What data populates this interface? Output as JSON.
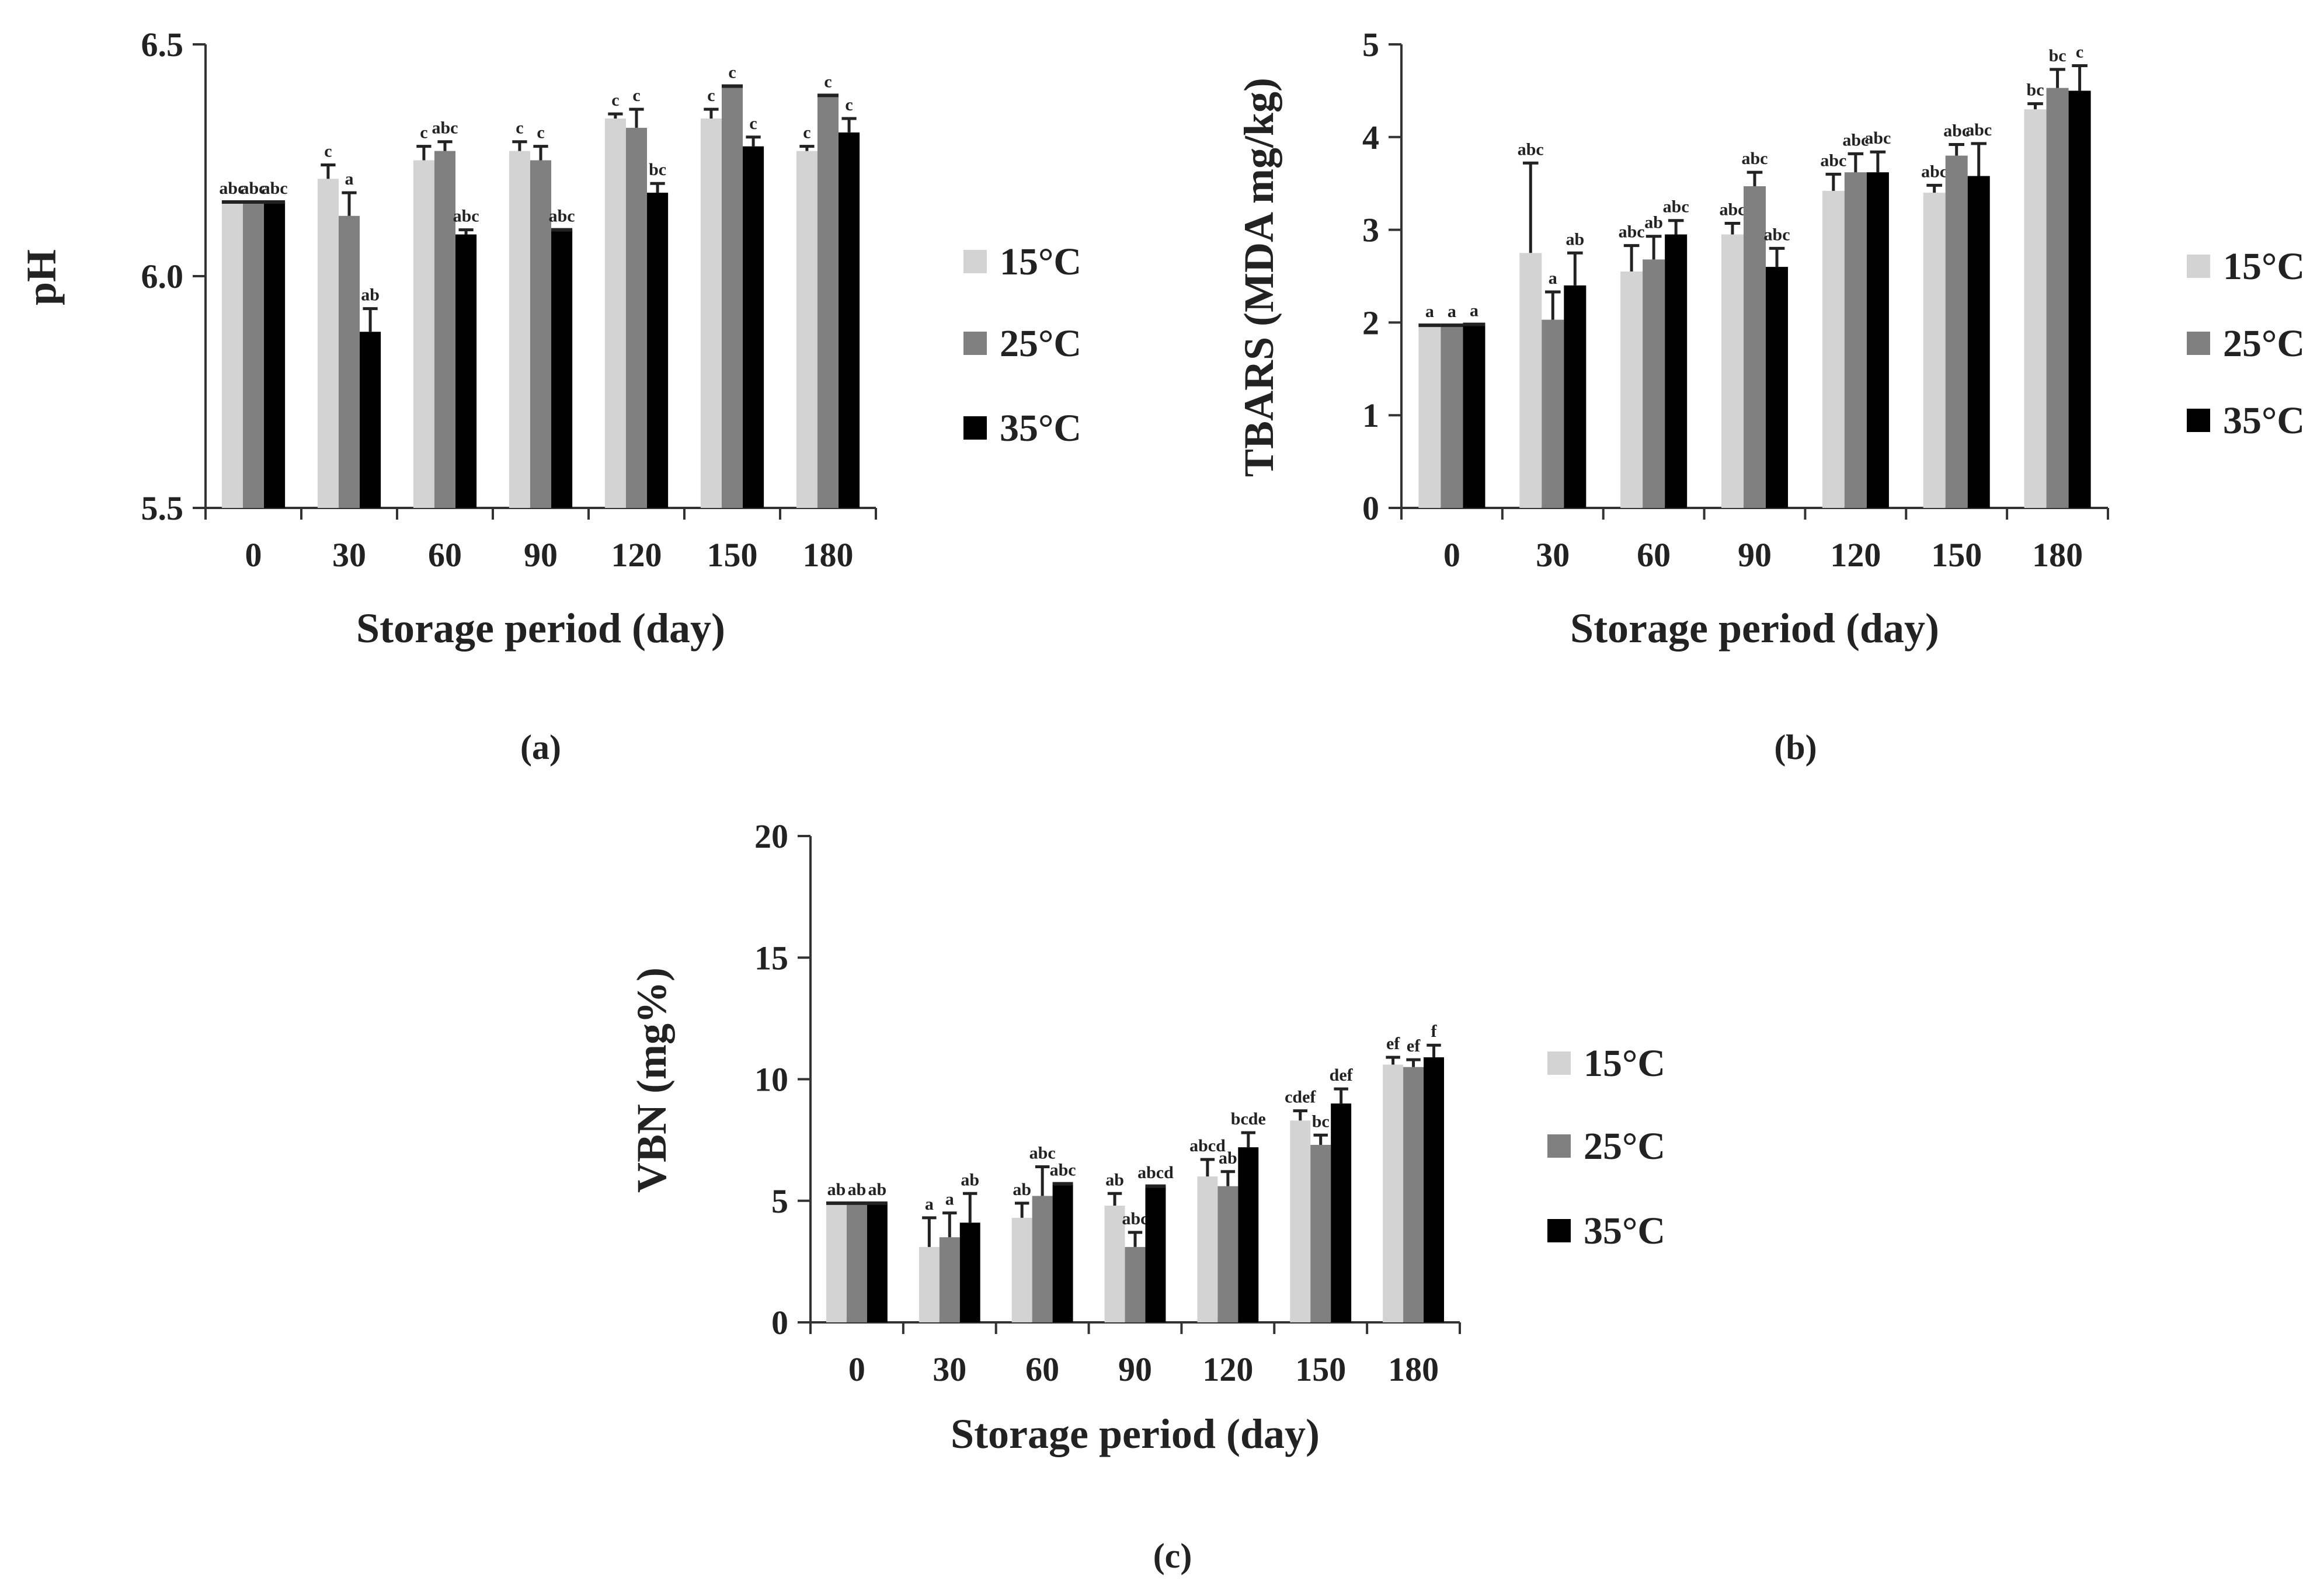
{
  "chart_data": [
    {
      "type": "bar",
      "panel": "(a)",
      "ylabel": "pH",
      "xlabel": "Storage period (day)",
      "ylim": [
        5.5,
        6.5
      ],
      "yticks": [
        "5.5",
        "6.0",
        "6.5"
      ],
      "ytick_values": [
        5.5,
        6.0,
        6.5
      ],
      "categories": [
        "0",
        "30",
        "60",
        "90",
        "120",
        "150",
        "180"
      ],
      "series": [
        {
          "name": "15°C",
          "color": "#d3d3d3",
          "values": [
            6.16,
            6.21,
            6.25,
            6.27,
            6.34,
            6.34,
            6.27
          ],
          "errors": [
            0.0,
            0.03,
            0.03,
            0.02,
            0.01,
            0.02,
            0.01
          ],
          "letters": [
            "abc",
            "c",
            "c",
            "c",
            "c",
            "c",
            "c"
          ]
        },
        {
          "name": "25°C",
          "color": "#808080",
          "values": [
            6.16,
            6.13,
            6.27,
            6.25,
            6.32,
            6.41,
            6.39
          ],
          "errors": [
            0.0,
            0.05,
            0.02,
            0.03,
            0.04,
            0.0,
            0.0
          ],
          "letters": [
            "abc",
            "a",
            "abc",
            "c",
            "c",
            "c",
            "c"
          ]
        },
        {
          "name": "35°C",
          "color": "#000000",
          "values": [
            6.16,
            5.88,
            6.09,
            6.1,
            6.18,
            6.28,
            6.31
          ],
          "errors": [
            0.0,
            0.05,
            0.01,
            0.0,
            0.02,
            0.02,
            0.03
          ],
          "letters": [
            "abc",
            "ab",
            "abc",
            "abc",
            "bc",
            "c",
            "c"
          ]
        }
      ]
    },
    {
      "type": "bar",
      "panel": "(b)",
      "ylabel": "TBARS (MDA mg/kg)",
      "xlabel": "Storage period (day)",
      "ylim": [
        0,
        5
      ],
      "yticks": [
        "0",
        "1",
        "2",
        "3",
        "4",
        "5"
      ],
      "ytick_values": [
        0,
        1,
        2,
        3,
        4,
        5
      ],
      "categories": [
        "0",
        "30",
        "60",
        "90",
        "120",
        "150",
        "180"
      ],
      "series": [
        {
          "name": "15°C",
          "color": "#d3d3d3",
          "values": [
            1.97,
            2.75,
            2.55,
            2.95,
            3.42,
            3.4,
            4.3
          ],
          "errors": [
            0.0,
            0.97,
            0.28,
            0.12,
            0.18,
            0.08,
            0.06
          ],
          "letters": [
            "a",
            "abc",
            "abc",
            "abc",
            "abc",
            "abc",
            "bc"
          ]
        },
        {
          "name": "25°C",
          "color": "#808080",
          "values": [
            1.97,
            2.03,
            2.68,
            3.47,
            3.62,
            3.8,
            4.53
          ],
          "errors": [
            0.0,
            0.3,
            0.25,
            0.15,
            0.2,
            0.12,
            0.2
          ],
          "letters": [
            "a",
            "a",
            "ab",
            "abc",
            "abc",
            "abc",
            "bc"
          ]
        },
        {
          "name": "35°C",
          "color": "#000000",
          "values": [
            1.98,
            2.4,
            2.95,
            2.6,
            3.62,
            3.58,
            4.5
          ],
          "errors": [
            0.0,
            0.35,
            0.15,
            0.2,
            0.22,
            0.35,
            0.27
          ],
          "letters": [
            "a",
            "ab",
            "abc",
            "abc",
            "abc",
            "abc",
            "c"
          ]
        }
      ]
    },
    {
      "type": "bar",
      "panel": "(c)",
      "ylabel": "VBN (mg%)",
      "xlabel": "Storage period (day)",
      "ylim": [
        0,
        20
      ],
      "yticks": [
        "0",
        "5",
        "10",
        "15",
        "20"
      ],
      "ytick_values": [
        0,
        5,
        10,
        15,
        20
      ],
      "categories": [
        "0",
        "30",
        "60",
        "90",
        "120",
        "150",
        "180"
      ],
      "series": [
        {
          "name": "15°C",
          "color": "#d3d3d3",
          "values": [
            4.9,
            3.1,
            4.3,
            4.8,
            6.0,
            8.3,
            10.6
          ],
          "errors": [
            0.0,
            1.2,
            0.6,
            0.5,
            0.7,
            0.4,
            0.3
          ],
          "letters": [
            "ab",
            "a",
            "ab",
            "ab",
            "abcd",
            "cdef",
            "ef"
          ]
        },
        {
          "name": "25°C",
          "color": "#808080",
          "values": [
            4.9,
            3.5,
            5.2,
            3.1,
            5.6,
            7.3,
            10.5
          ],
          "errors": [
            0.0,
            1.0,
            1.2,
            0.6,
            0.6,
            0.4,
            0.3
          ],
          "letters": [
            "ab",
            "a",
            "abc",
            "abc",
            "ab",
            "bc",
            "ef"
          ]
        },
        {
          "name": "35°C",
          "color": "#000000",
          "values": [
            4.9,
            4.1,
            5.7,
            5.6,
            7.2,
            9.0,
            10.9
          ],
          "errors": [
            0.0,
            1.2,
            0.0,
            0.0,
            0.6,
            0.6,
            0.5
          ],
          "letters": [
            "ab",
            "ab",
            "abc",
            "abcd",
            "bcde",
            "def",
            "f"
          ]
        }
      ]
    }
  ]
}
